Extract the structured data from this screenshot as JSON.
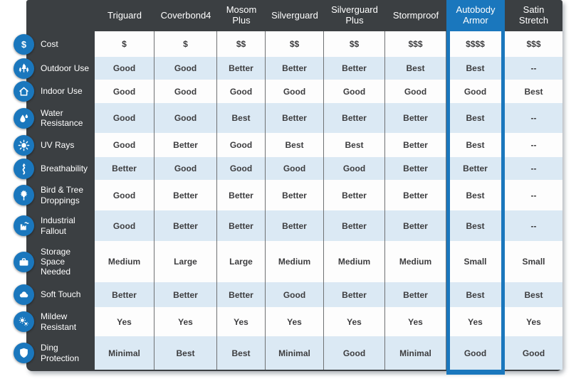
{
  "colors": {
    "panel_dark": "#3b3f42",
    "accent_blue": "#1a77bd",
    "row_alt": "#dbe9f4",
    "row_plain": "#fdfdfd",
    "separator": "#6f7173",
    "cell_text": "#3d3d3f",
    "header_text": "#ffffff"
  },
  "chart_data": {
    "type": "table",
    "highlighted_column": "Autobody Armor",
    "columns": [
      {
        "label": "Triguard",
        "highlight": false
      },
      {
        "label": "Coverbond4",
        "highlight": false
      },
      {
        "label": "Mosom Plus",
        "highlight": false
      },
      {
        "label": "Silverguard",
        "highlight": false
      },
      {
        "label": "Silverguard Plus",
        "highlight": false
      },
      {
        "label": "Stormproof",
        "highlight": false
      },
      {
        "label": "Autobody Armor",
        "highlight": true
      },
      {
        "label": "Satin Stretch",
        "highlight": false
      }
    ],
    "rows": [
      {
        "feature": "Cost",
        "icon": "dollar-icon",
        "values": [
          "$",
          "$",
          "$$",
          "$$",
          "$$",
          "$$$",
          "$$$$",
          "$$$"
        ]
      },
      {
        "feature": "Outdoor Use",
        "icon": "trees-icon",
        "values": [
          "Good",
          "Good",
          "Better",
          "Better",
          "Better",
          "Best",
          "Best",
          "--"
        ]
      },
      {
        "feature": "Indoor Use",
        "icon": "house-icon",
        "values": [
          "Good",
          "Good",
          "Good",
          "Good",
          "Good",
          "Good",
          "Good",
          "Best"
        ]
      },
      {
        "feature": "Water Resistance",
        "icon": "water-drops-icon",
        "values": [
          "Good",
          "Good",
          "Best",
          "Better",
          "Better",
          "Better",
          "Best",
          "--"
        ]
      },
      {
        "feature": "UV Rays",
        "icon": "sun-icon",
        "values": [
          "Good",
          "Better",
          "Good",
          "Best",
          "Best",
          "Better",
          "Best",
          "--"
        ]
      },
      {
        "feature": "Breathability",
        "icon": "breathability-icon",
        "values": [
          "Better",
          "Good",
          "Good",
          "Good",
          "Good",
          "Better",
          "Better",
          "--"
        ]
      },
      {
        "feature": "Bird & Tree Droppings",
        "icon": "maple-leaf-icon",
        "values": [
          "Good",
          "Better",
          "Better",
          "Better",
          "Better",
          "Better",
          "Best",
          "--"
        ]
      },
      {
        "feature": "Industrial Fallout",
        "icon": "factory-icon",
        "values": [
          "Good",
          "Better",
          "Better",
          "Better",
          "Better",
          "Better",
          "Best",
          "--"
        ]
      },
      {
        "feature": "Storage Space Needed",
        "icon": "suitcase-icon",
        "values": [
          "Medium",
          "Large",
          "Large",
          "Medium",
          "Medium",
          "Medium",
          "Small",
          "Small"
        ]
      },
      {
        "feature": "Soft Touch",
        "icon": "cloud-icon",
        "values": [
          "Better",
          "Better",
          "Better",
          "Good",
          "Better",
          "Better",
          "Best",
          "Best"
        ]
      },
      {
        "feature": "Mildew Resistant",
        "icon": "spores-icon",
        "values": [
          "Yes",
          "Yes",
          "Yes",
          "Yes",
          "Yes",
          "Yes",
          "Yes",
          "Yes"
        ]
      },
      {
        "feature": "Ding Protection",
        "icon": "shield-icon",
        "values": [
          "Minimal",
          "Best",
          "Best",
          "Minimal",
          "Good",
          "Minimal",
          "Good",
          "Good"
        ]
      }
    ]
  }
}
